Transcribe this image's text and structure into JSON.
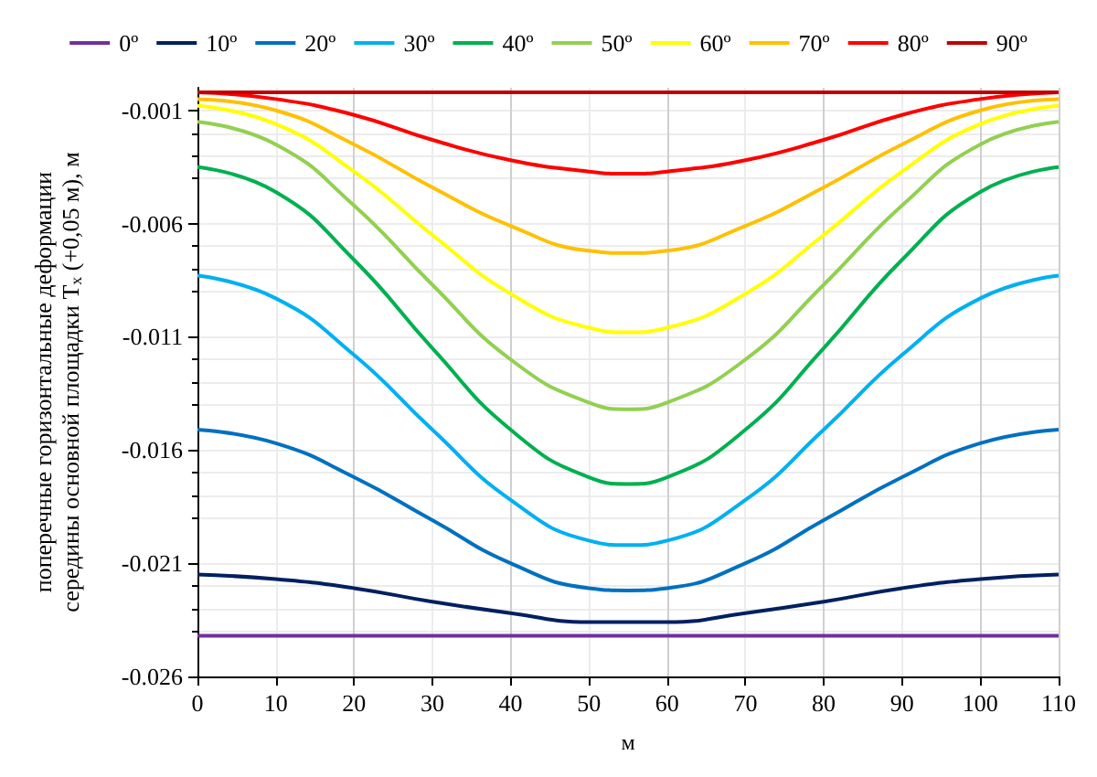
{
  "chart_data": {
    "type": "line",
    "xlabel": "м",
    "ylabel": "поперечные горизонтальные деформации\nсередины основной площадки T$_{x}$ (+0,05 м), м",
    "x": [
      0,
      10,
      20,
      30,
      40,
      50,
      55,
      60,
      70,
      80,
      90,
      100,
      110
    ],
    "xlim": [
      0,
      110
    ],
    "xticks": [
      0,
      10,
      20,
      30,
      40,
      50,
      60,
      70,
      80,
      90,
      100,
      110
    ],
    "ylim": [
      -0.026,
      0
    ],
    "yticks": [
      -0.026,
      -0.021,
      -0.016,
      -0.011,
      -0.006,
      -0.001
    ],
    "grid": true,
    "legend": "top",
    "marker": "none",
    "line_style": "solid",
    "series": [
      {
        "name": "0º",
        "color": "#7030a0",
        "values": [
          -0.0242,
          -0.0242,
          -0.0242,
          -0.0242,
          -0.0242,
          -0.0242,
          -0.0242,
          -0.0242,
          -0.0242,
          -0.0242,
          -0.0242,
          -0.0242,
          -0.0242
        ]
      },
      {
        "name": "10º",
        "color": "#002060",
        "values": [
          -0.0215,
          -0.0217,
          -0.0221,
          -0.0227,
          -0.0232,
          -0.0236,
          -0.0236,
          -0.0236,
          -0.0232,
          -0.0227,
          -0.0221,
          -0.0217,
          -0.0215
        ]
      },
      {
        "name": "20º",
        "color": "#0070c0",
        "values": [
          -0.0151,
          -0.0157,
          -0.0172,
          -0.0191,
          -0.021,
          -0.0221,
          -0.0222,
          -0.0221,
          -0.021,
          -0.0191,
          -0.0172,
          -0.0157,
          -0.0151
        ]
      },
      {
        "name": "30º",
        "color": "#00b0f0",
        "values": [
          -0.0083,
          -0.0093,
          -0.0118,
          -0.0151,
          -0.0182,
          -0.02,
          -0.0202,
          -0.02,
          -0.0182,
          -0.0151,
          -0.0118,
          -0.0093,
          -0.0083
        ]
      },
      {
        "name": "40º",
        "color": "#00b050",
        "values": [
          -0.0035,
          -0.0046,
          -0.0076,
          -0.0115,
          -0.0151,
          -0.0172,
          -0.0175,
          -0.0172,
          -0.0151,
          -0.0115,
          -0.0076,
          -0.0046,
          -0.0035
        ]
      },
      {
        "name": "50º",
        "color": "#92d050",
        "values": [
          -0.0015,
          -0.0025,
          -0.0052,
          -0.0087,
          -0.012,
          -0.0139,
          -0.0142,
          -0.0139,
          -0.012,
          -0.0087,
          -0.0052,
          -0.0025,
          -0.0015
        ]
      },
      {
        "name": "60º",
        "color": "#ffff00",
        "values": [
          -0.0008,
          -0.0016,
          -0.0037,
          -0.0065,
          -0.0091,
          -0.0106,
          -0.0108,
          -0.0106,
          -0.0091,
          -0.0065,
          -0.0037,
          -0.0016,
          -0.0008
        ]
      },
      {
        "name": "70º",
        "color": "#ffc000",
        "values": [
          -0.0005,
          -0.001,
          -0.0025,
          -0.0044,
          -0.0061,
          -0.0072,
          -0.0073,
          -0.0072,
          -0.0061,
          -0.0044,
          -0.0025,
          -0.001,
          -0.0005
        ]
      },
      {
        "name": "80º",
        "color": "#ff0000",
        "values": [
          -0.0002,
          -0.0005,
          -0.0012,
          -0.0023,
          -0.0032,
          -0.0037,
          -0.0038,
          -0.0037,
          -0.0032,
          -0.0023,
          -0.0012,
          -0.0005,
          -0.0002
        ]
      },
      {
        "name": "90º",
        "color": "#c00000",
        "values": [
          -0.0002,
          -0.0002,
          -0.0002,
          -0.0002,
          -0.0002,
          -0.0002,
          -0.0002,
          -0.0002,
          -0.0002,
          -0.0002,
          -0.0002,
          -0.0002,
          -0.0002
        ]
      }
    ]
  }
}
